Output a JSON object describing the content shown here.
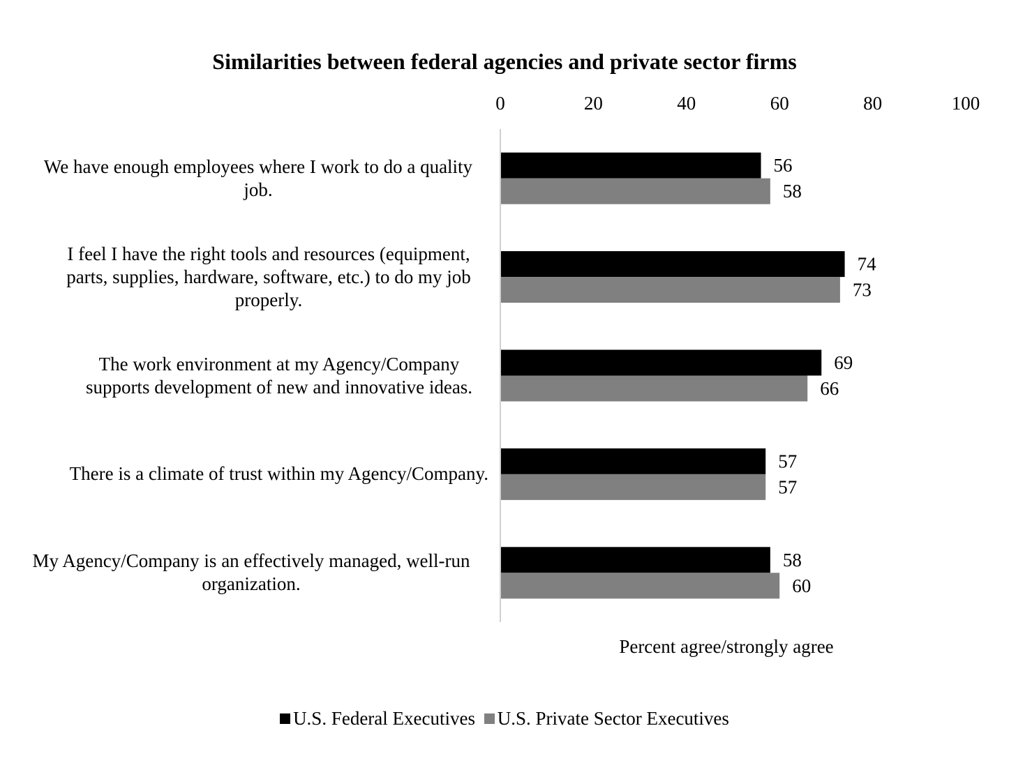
{
  "chart_data": {
    "type": "bar",
    "orientation": "horizontal",
    "title": "Similarities between federal agencies and private sector firms",
    "xlabel": "Percent agree/strongly agree",
    "xlim": [
      0,
      100
    ],
    "xticks": [
      "0",
      "20",
      "40",
      "60",
      "80",
      "100"
    ],
    "categories": [
      "We have enough employees where I work to do a quality job.",
      "I feel I have the right tools and resources (equipment, parts, supplies, hardware, software, etc.) to do my job properly.",
      "The work environment at my Agency/Company supports development of new and innovative ideas.",
      "There is a climate of trust within my Agency/Company.",
      "My Agency/Company is an effectively managed, well-run organization."
    ],
    "series": [
      {
        "name": "U.S. Federal Executives",
        "color": "#000000",
        "values": [
          56,
          74,
          69,
          57,
          58
        ]
      },
      {
        "name": "U.S. Private Sector Executives",
        "color": "#808080",
        "values": [
          58,
          73,
          66,
          57,
          60
        ]
      }
    ],
    "legend_position": "bottom",
    "grid": false
  }
}
